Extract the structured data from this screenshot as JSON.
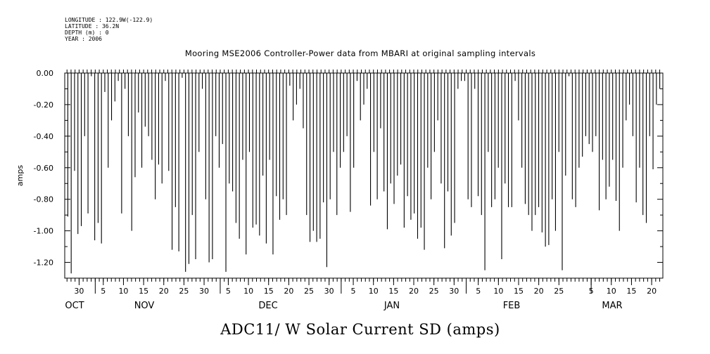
{
  "header": {
    "info": [
      "LONGITUDE : 122.9W(-122.9)",
      "LATITUDE : 36.2N",
      "DEPTH (m) : 0",
      "YEAR : 2006"
    ],
    "title": "Mooring MSE2006 Controller-Power data from MBARI at original sampling intervals"
  },
  "footer": {
    "label": "ADC11/ W Solar Current SD (amps)"
  },
  "chart_data": {
    "type": "bar",
    "title": "Mooring MSE2006 Controller-Power data from MBARI at original sampling intervals",
    "ylabel": "amps",
    "xlabel": "",
    "ylim": [
      -1.3,
      0.0
    ],
    "yticks": [
      "0.00",
      "-0.20",
      "-0.40",
      "-0.60",
      "-0.80",
      "-1.00",
      "-1.20"
    ],
    "x_day_labels": [
      "30",
      "5",
      "10",
      "15",
      "20",
      "25",
      "30",
      "5",
      "10",
      "15",
      "20",
      "25",
      "30",
      "5",
      "10",
      "15",
      "20",
      "25",
      "30",
      "5",
      "10",
      "15",
      "20",
      "25",
      "5",
      "10",
      "15",
      "20"
    ],
    "months": [
      "OCT",
      "NOV",
      "DEC",
      "JAN",
      "FEB",
      "MAR"
    ],
    "grid": false,
    "series": [
      {
        "values": [
          -0.91,
          -1.27,
          -0.62,
          -1.02,
          -0.97,
          -0.4,
          -0.89,
          -0.02,
          -1.06,
          -0.95,
          -1.08,
          -0.12,
          -0.6,
          -0.3,
          -0.18,
          -0.05,
          -0.89,
          -0.1,
          -0.4,
          -1.0,
          -0.66,
          -0.25,
          -0.6,
          -0.34,
          -0.4,
          -0.55,
          -0.8,
          -0.58,
          -0.7,
          -0.05,
          -0.62,
          -1.12,
          -0.85,
          -1.13,
          -0.03,
          -1.26,
          -1.21,
          -0.9,
          -1.18,
          -0.5,
          -0.1,
          -0.8,
          -1.2,
          -1.18,
          -0.4,
          -0.6,
          -0.45,
          -1.26,
          -0.7,
          -0.75,
          -0.95,
          -1.05,
          -0.55,
          -1.15,
          -0.5,
          -0.98,
          -0.96,
          -1.03,
          -0.65,
          -1.08,
          -0.55,
          -1.15,
          -0.78,
          -0.93,
          -0.8,
          -0.9,
          -0.08,
          -0.3,
          -0.2,
          -0.1,
          -0.35,
          -0.9,
          -1.07,
          -1.0,
          -1.07,
          -1.05,
          -0.82,
          -1.23,
          -0.8,
          -0.5,
          -0.9,
          -0.6,
          -0.5,
          -0.4,
          -0.88,
          -0.6,
          -0.05,
          -0.3,
          -0.2,
          -0.1,
          -0.84,
          -0.5,
          -0.8,
          -0.35,
          -0.75,
          -0.99,
          -0.7,
          -0.83,
          -0.65,
          -0.58,
          -0.98,
          -0.78,
          -0.93,
          -0.89,
          -1.05,
          -0.98,
          -1.12,
          -0.6,
          -0.8,
          -0.5,
          -0.3,
          -0.7,
          -1.11,
          -0.75,
          -1.03,
          -0.95,
          -0.1,
          -0.05,
          -0.05,
          -0.8,
          -0.85,
          -0.1,
          -0.78,
          -0.9,
          -1.25,
          -0.5,
          -0.85,
          -0.8,
          -0.6,
          -1.18,
          -0.7,
          -0.85,
          -0.85,
          -0.05,
          -0.3,
          -0.6,
          -0.83,
          -0.9,
          -1.0,
          -0.9,
          -0.85,
          -1.01,
          -1.1,
          -1.09,
          -0.8,
          -1.0,
          -0.5,
          -1.25,
          -0.65,
          -0.02,
          -0.8,
          -0.85,
          -0.6,
          -0.53,
          -0.4,
          -0.45,
          -0.5,
          -0.4,
          -0.87,
          -0.55,
          -0.8,
          -0.72,
          -0.55,
          -0.81,
          -1.0,
          -0.6,
          -0.3,
          -0.2,
          -0.4,
          -0.82,
          -0.6,
          -0.9,
          -0.95,
          -0.4,
          -0.61,
          -0.2,
          -0.1
        ]
      }
    ]
  }
}
